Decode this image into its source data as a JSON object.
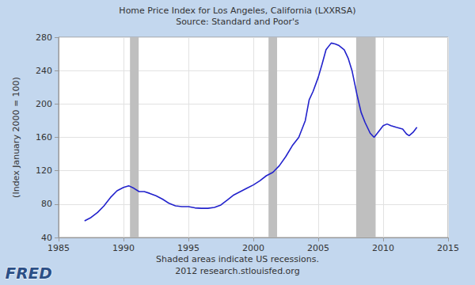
{
  "chart_data": {
    "type": "line",
    "title": "Home Price Index for Los Angeles, California (LXXRSA)",
    "subtitle": "Source: Standard and Poor's",
    "ylabel": "(Index January 2000 = 100)",
    "x": [
      1987.0,
      1987.5,
      1988.0,
      1988.5,
      1989.0,
      1989.5,
      1990.0,
      1990.4,
      1990.8,
      1991.2,
      1991.6,
      1992.0,
      1992.5,
      1993.0,
      1993.5,
      1994.0,
      1994.5,
      1995.0,
      1995.5,
      1996.0,
      1996.5,
      1997.0,
      1997.5,
      1998.0,
      1998.5,
      1999.0,
      1999.5,
      2000.0,
      2000.5,
      2001.0,
      2001.5,
      2002.0,
      2002.5,
      2003.0,
      2003.5,
      2004.0,
      2004.3,
      2004.6,
      2005.0,
      2005.3,
      2005.6,
      2006.0,
      2006.3,
      2006.6,
      2007.0,
      2007.3,
      2007.6,
      2008.0,
      2008.3,
      2008.6,
      2009.0,
      2009.3,
      2009.6,
      2010.0,
      2010.3,
      2010.6,
      2011.0,
      2011.5,
      2011.8,
      2012.0,
      2012.3,
      2012.6
    ],
    "values": [
      60,
      64,
      70,
      78,
      88,
      96,
      100,
      102,
      99,
      95,
      95,
      93,
      90,
      86,
      81,
      78,
      77,
      77,
      75.5,
      75,
      75,
      76,
      79,
      85,
      91,
      95,
      99,
      103,
      108,
      114,
      118,
      126,
      137,
      150,
      160,
      180,
      205,
      215,
      232,
      248,
      265,
      273,
      272,
      270,
      265,
      255,
      240,
      210,
      190,
      178,
      165,
      160,
      166,
      174,
      176,
      174,
      172,
      170,
      164,
      162,
      166,
      172
    ],
    "color": "#2222cc",
    "xlim": [
      1985,
      2015
    ],
    "xticks": [
      1985,
      1990,
      1995,
      2000,
      2005,
      2010,
      2015
    ],
    "ylim": [
      40,
      280
    ],
    "yticks": [
      40,
      80,
      120,
      160,
      200,
      240,
      280
    ],
    "grid": true,
    "recessions": [
      [
        1990.5,
        1991.17
      ],
      [
        2001.17,
        2001.83
      ],
      [
        2007.92,
        2009.42
      ]
    ],
    "annotations": [
      "Shaded areas indicate US recessions.",
      "2012 research.stlouisfed.org"
    ],
    "logo": "FRED"
  }
}
